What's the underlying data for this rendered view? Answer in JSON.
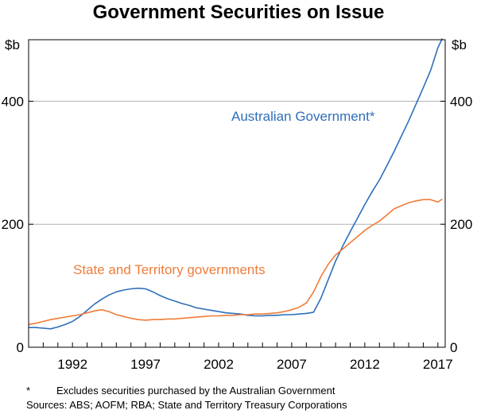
{
  "chart_data": {
    "type": "line",
    "title": "Government Securities on Issue",
    "ylabel_left": "$b",
    "ylabel_right": "$b",
    "ylim": [
      0,
      500
    ],
    "xlim": [
      1989.0,
      2017.5
    ],
    "yticks": [
      0,
      200,
      400
    ],
    "xticks": [
      1992,
      1997,
      2002,
      2007,
      2012,
      2017
    ],
    "grid": true,
    "series": [
      {
        "name": "Australian Government*",
        "color": "#2e6fba",
        "x": [
          1989.0,
          1989.5,
          1990.0,
          1990.5,
          1991.0,
          1991.5,
          1992.0,
          1992.5,
          1993.0,
          1993.5,
          1994.0,
          1994.5,
          1995.0,
          1995.5,
          1996.0,
          1996.5,
          1997.0,
          1997.5,
          1998.0,
          1998.5,
          1999.0,
          1999.5,
          2000.0,
          2000.5,
          2001.0,
          2001.5,
          2002.0,
          2002.5,
          2003.0,
          2003.5,
          2004.0,
          2004.5,
          2005.0,
          2005.5,
          2006.0,
          2006.5,
          2007.0,
          2007.5,
          2008.0,
          2008.5,
          2009.0,
          2009.5,
          2010.0,
          2010.5,
          2011.0,
          2011.5,
          2012.0,
          2012.5,
          2013.0,
          2013.5,
          2014.0,
          2014.5,
          2015.0,
          2015.5,
          2016.0,
          2016.5,
          2017.0,
          2017.3
        ],
        "values": [
          32,
          32,
          31,
          30,
          33,
          37,
          42,
          50,
          60,
          70,
          78,
          85,
          90,
          93,
          95,
          96,
          95,
          90,
          84,
          79,
          75,
          71,
          68,
          64,
          62,
          60,
          58,
          56,
          55,
          54,
          52,
          51,
          51,
          52,
          52,
          53,
          53,
          54,
          55,
          57,
          80,
          110,
          140,
          165,
          188,
          210,
          232,
          253,
          272,
          295,
          318,
          343,
          368,
          395,
          422,
          450,
          487,
          502
        ]
      },
      {
        "name": "State and Territory governments",
        "color": "#f07c39",
        "x": [
          1989.0,
          1989.5,
          1990.0,
          1990.5,
          1991.0,
          1991.5,
          1992.0,
          1992.5,
          1993.0,
          1993.5,
          1994.0,
          1994.5,
          1995.0,
          1995.5,
          1996.0,
          1996.5,
          1997.0,
          1997.5,
          1998.0,
          1998.5,
          1999.0,
          1999.5,
          2000.0,
          2000.5,
          2001.0,
          2001.5,
          2002.0,
          2002.5,
          2003.0,
          2003.5,
          2004.0,
          2004.5,
          2005.0,
          2005.5,
          2006.0,
          2006.5,
          2007.0,
          2007.5,
          2008.0,
          2008.5,
          2009.0,
          2009.5,
          2010.0,
          2010.5,
          2011.0,
          2011.5,
          2012.0,
          2012.5,
          2013.0,
          2013.5,
          2014.0,
          2014.5,
          2015.0,
          2015.5,
          2016.0,
          2016.5,
          2017.0,
          2017.3
        ],
        "values": [
          37,
          39,
          42,
          45,
          47,
          49,
          51,
          53,
          56,
          59,
          61,
          58,
          53,
          50,
          47,
          45,
          44,
          45,
          45,
          46,
          46,
          47,
          48,
          49,
          50,
          51,
          51,
          52,
          52,
          53,
          53,
          54,
          54,
          55,
          56,
          58,
          61,
          65,
          72,
          90,
          115,
          135,
          150,
          160,
          170,
          180,
          190,
          198,
          205,
          215,
          225,
          230,
          235,
          238,
          240,
          240,
          236,
          241
        ]
      }
    ],
    "annotations": [
      {
        "text": "Australian Government*",
        "series": 0
      },
      {
        "text": "State and Territory governments",
        "series": 1
      }
    ]
  },
  "footnotes": {
    "marker": "*",
    "note": "Excludes securities purchased by the Australian Government",
    "sources": "Sources: ABS; AOFM; RBA; State and Territory Treasury Corporations"
  }
}
